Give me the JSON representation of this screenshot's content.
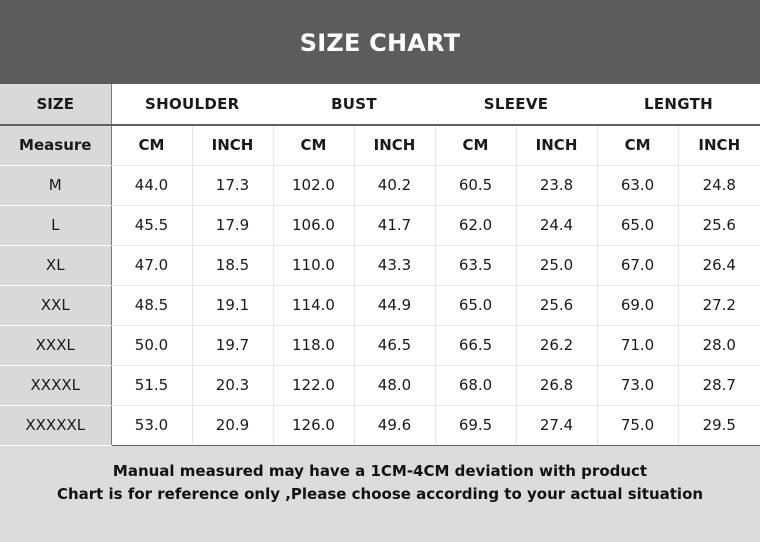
{
  "header": {
    "title": "SIZE CHART"
  },
  "chart_data": {
    "type": "table",
    "title": "SIZE CHART",
    "corner_label": "SIZE",
    "unit_row_label": "Measure",
    "groups": [
      "SHOULDER",
      "BUST",
      "SLEEVE",
      "LENGTH"
    ],
    "units": [
      "CM",
      "INCH",
      "CM",
      "INCH",
      "CM",
      "INCH",
      "CM",
      "INCH"
    ],
    "rows": [
      {
        "size": "M",
        "values": [
          "44.0",
          "17.3",
          "102.0",
          "40.2",
          "60.5",
          "23.8",
          "63.0",
          "24.8"
        ]
      },
      {
        "size": "L",
        "values": [
          "45.5",
          "17.9",
          "106.0",
          "41.7",
          "62.0",
          "24.4",
          "65.0",
          "25.6"
        ]
      },
      {
        "size": "XL",
        "values": [
          "47.0",
          "18.5",
          "110.0",
          "43.3",
          "63.5",
          "25.0",
          "67.0",
          "26.4"
        ]
      },
      {
        "size": "XXL",
        "values": [
          "48.5",
          "19.1",
          "114.0",
          "44.9",
          "65.0",
          "25.6",
          "69.0",
          "27.2"
        ]
      },
      {
        "size": "XXXL",
        "values": [
          "50.0",
          "19.7",
          "118.0",
          "46.5",
          "66.5",
          "26.2",
          "71.0",
          "28.0"
        ]
      },
      {
        "size": "XXXXL",
        "values": [
          "51.5",
          "20.3",
          "122.0",
          "48.0",
          "68.0",
          "26.8",
          "73.0",
          "28.7"
        ]
      },
      {
        "size": "XXXXXL",
        "values": [
          "53.0",
          "20.9",
          "126.0",
          "49.6",
          "69.5",
          "27.4",
          "75.0",
          "29.5"
        ]
      }
    ]
  },
  "footer": {
    "line1": "Manual measured may have a 1CM-4CM deviation with product",
    "line2": "Chart is for reference only ,Please choose according to your actual situation"
  },
  "colors": {
    "header_bg": "#5c5c5c",
    "page_bg": "#dcdcdc",
    "label_column_bg": "#d9d9d9",
    "cell_bg": "#ffffff"
  }
}
